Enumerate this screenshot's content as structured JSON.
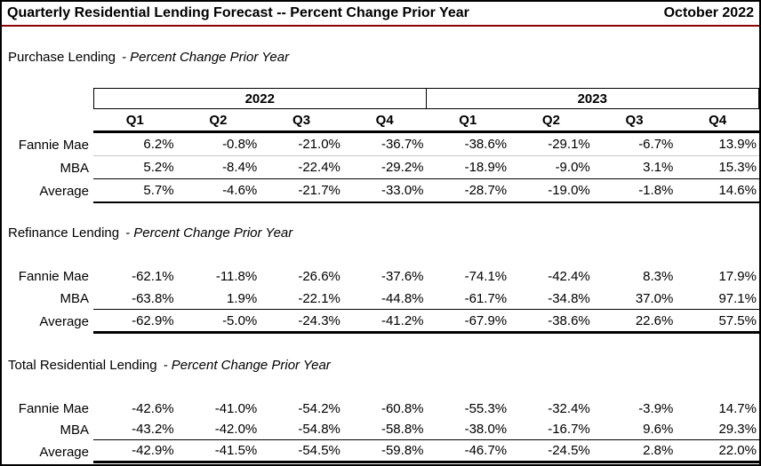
{
  "header": {
    "title": "Quarterly Residential Lending Forecast -- Percent Change Prior Year",
    "date": "October 2022",
    "rule_color": "#8B0000"
  },
  "table": {
    "year_headers": [
      "2022",
      "2023"
    ],
    "quarter_headers": [
      "Q1",
      "Q2",
      "Q3",
      "Q4",
      "Q1",
      "Q2",
      "Q3",
      "Q4"
    ]
  },
  "sections": [
    {
      "name": "Purchase Lending",
      "subtitle": "- Percent Change Prior Year",
      "rows": [
        {
          "label": "Fannie Mae",
          "values": [
            "6.2%",
            "-0.8%",
            "-21.0%",
            "-36.7%",
            "-38.6%",
            "-29.1%",
            "-6.7%",
            "13.9%"
          ]
        },
        {
          "label": "MBA",
          "values": [
            "5.2%",
            "-8.4%",
            "-22.4%",
            "-29.2%",
            "-18.9%",
            "-9.0%",
            "3.1%",
            "15.3%"
          ]
        },
        {
          "label": "Average",
          "values": [
            "5.7%",
            "-4.6%",
            "-21.7%",
            "-33.0%",
            "-28.7%",
            "-19.0%",
            "-1.8%",
            "14.6%"
          ]
        }
      ]
    },
    {
      "name": "Refinance Lending",
      "subtitle": "- Percent Change Prior Year",
      "rows": [
        {
          "label": "Fannie Mae",
          "values": [
            "-62.1%",
            "-11.8%",
            "-26.6%",
            "-37.6%",
            "-74.1%",
            "-42.4%",
            "8.3%",
            "17.9%"
          ]
        },
        {
          "label": "MBA",
          "values": [
            "-63.8%",
            "1.9%",
            "-22.1%",
            "-44.8%",
            "-61.7%",
            "-34.8%",
            "37.0%",
            "97.1%"
          ]
        },
        {
          "label": "Average",
          "values": [
            "-62.9%",
            "-5.0%",
            "-24.3%",
            "-41.2%",
            "-67.9%",
            "-38.6%",
            "22.6%",
            "57.5%"
          ]
        }
      ]
    },
    {
      "name": "Total Residential Lending",
      "subtitle": "- Percent Change Prior Year",
      "rows": [
        {
          "label": "Fannie Mae",
          "values": [
            "-42.6%",
            "-41.0%",
            "-54.2%",
            "-60.8%",
            "-55.3%",
            "-32.4%",
            "-3.9%",
            "14.7%"
          ]
        },
        {
          "label": "MBA",
          "values": [
            "-43.2%",
            "-42.0%",
            "-54.8%",
            "-58.8%",
            "-38.0%",
            "-16.7%",
            "9.6%",
            "29.3%"
          ]
        },
        {
          "label": "Average",
          "values": [
            "-42.9%",
            "-41.5%",
            "-54.5%",
            "-59.8%",
            "-46.7%",
            "-24.5%",
            "2.8%",
            "22.0%"
          ]
        }
      ]
    }
  ]
}
